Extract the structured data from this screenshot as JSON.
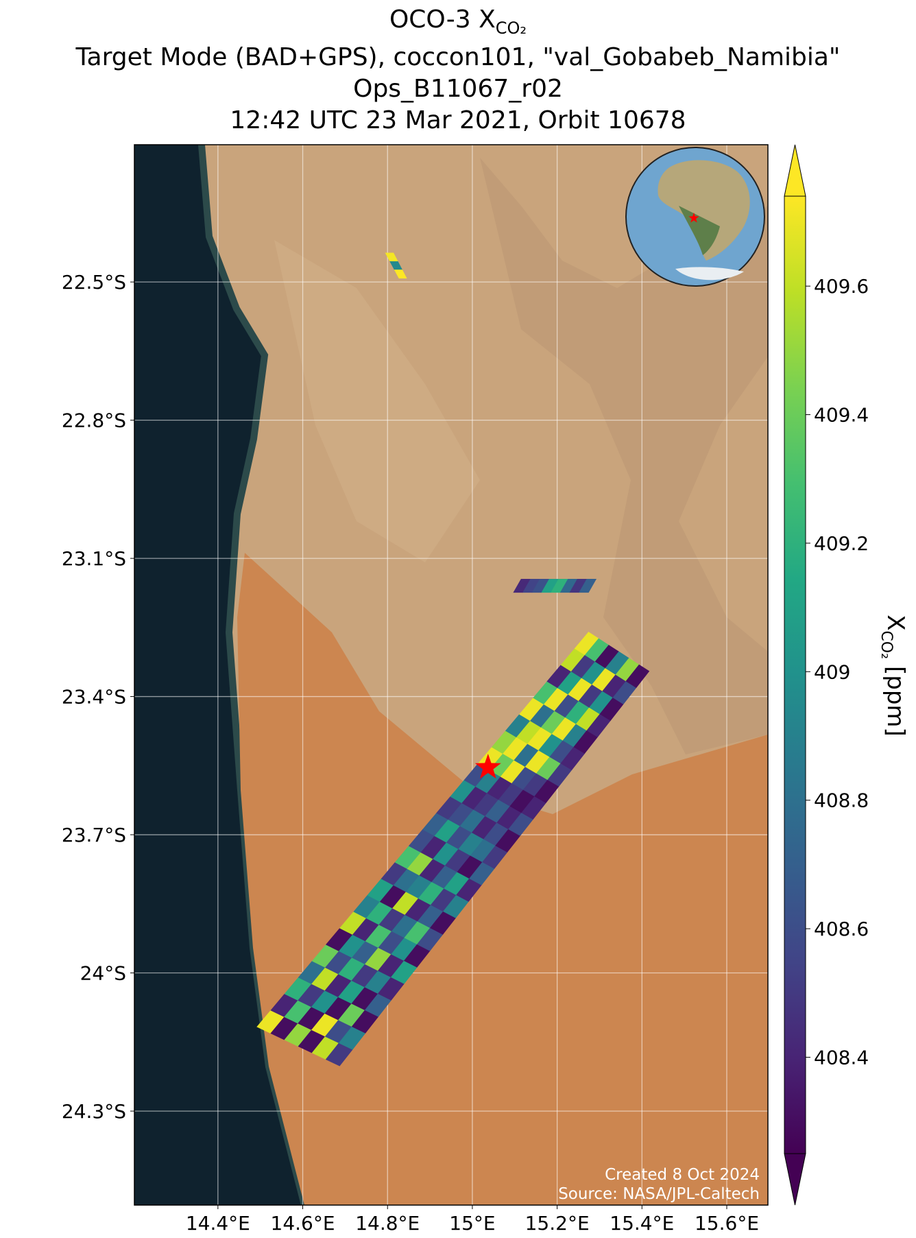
{
  "chart_data": {
    "type": "map",
    "title": {
      "main": "OCO-3 X",
      "subscript": "CO₂"
    },
    "subtitles": [
      "Target Mode (BAD+GPS), coccon101, \"val_Gobabeb_Namibia\"",
      "Ops_B11067_r02",
      "12:42 UTC 23 Mar 2021, Orbit 10678"
    ],
    "xlim": [
      14.203,
      15.697
    ],
    "ylim": [
      -24.504,
      -22.202
    ],
    "xticks": [
      {
        "value": 14.4,
        "label": "14.4°E"
      },
      {
        "value": 14.6,
        "label": "14.6°E"
      },
      {
        "value": 14.8,
        "label": "14.8°E"
      },
      {
        "value": 15.0,
        "label": "15°E"
      },
      {
        "value": 15.2,
        "label": "15.2°E"
      },
      {
        "value": 15.4,
        "label": "15.4°E"
      },
      {
        "value": 15.6,
        "label": "15.6°E"
      }
    ],
    "yticks": [
      {
        "value": -22.5,
        "label": "22.5°S"
      },
      {
        "value": -22.8,
        "label": "22.8°S"
      },
      {
        "value": -23.1,
        "label": "23.1°S"
      },
      {
        "value": -23.4,
        "label": "23.4°S"
      },
      {
        "value": -23.7,
        "label": "23.7°S"
      },
      {
        "value": -24.0,
        "label": "24°S"
      },
      {
        "value": -24.3,
        "label": "24.3°S"
      }
    ],
    "grid": true,
    "colormap": "viridis",
    "clim": [
      408.25,
      409.74
    ],
    "colorbar_ticks": [
      408.4,
      408.6,
      408.8,
      409.0,
      409.2,
      409.4,
      409.6
    ],
    "colorbar_label": {
      "main": "X",
      "subscript": "CO₂",
      "unit": "[ppm]"
    },
    "target": {
      "lon": 15.037,
      "lat": -23.554,
      "color": "#ff0000"
    },
    "swaths": [
      {
        "corners": [
          [
            14.795,
            -22.437
          ],
          [
            14.814,
            -22.437
          ],
          [
            14.827,
            -22.492
          ],
          [
            14.845,
            -22.492
          ]
        ],
        "values": [
          [
            409.72
          ],
          [
            408.95
          ],
          [
            409.74
          ]
        ]
      },
      {
        "corners": [
          [
            15.097,
            -23.174
          ],
          [
            15.274,
            -23.174
          ],
          [
            15.115,
            -23.145
          ],
          [
            15.292,
            -23.145
          ]
        ],
        "values": [
          [
            408.42,
            408.55,
            408.62,
            409.1,
            409.2,
            408.75,
            408.48,
            408.7
          ]
        ]
      },
      {
        "corners": [
          [
            14.492,
            -24.117
          ],
          [
            14.687,
            -24.202
          ],
          [
            15.274,
            -23.26
          ],
          [
            15.417,
            -23.345
          ]
        ],
        "values": [
          [
            409.7,
            408.3,
            409.5,
            408.3,
            409.6,
            408.5
          ],
          [
            408.4,
            409.3,
            408.3,
            409.7,
            408.6,
            408.9
          ],
          [
            409.2,
            408.5,
            409.0,
            408.3,
            409.4,
            408.3
          ],
          [
            408.8,
            409.6,
            408.4,
            409.1,
            408.3,
            408.7
          ],
          [
            409.4,
            408.6,
            409.2,
            408.5,
            408.9,
            408.4
          ],
          [
            408.3,
            409.0,
            408.7,
            409.5,
            408.4,
            409.1
          ],
          [
            409.6,
            408.4,
            409.3,
            408.6,
            409.0,
            408.3
          ],
          [
            408.9,
            409.2,
            408.5,
            408.8,
            409.3,
            408.6
          ],
          [
            409.1,
            408.3,
            409.6,
            408.4,
            408.7,
            408.3
          ],
          [
            408.5,
            408.8,
            408.9,
            409.2,
            408.5,
            408.9
          ],
          [
            409.3,
            409.5,
            408.4,
            408.7,
            409.1,
            408.4
          ],
          [
            408.6,
            408.4,
            409.0,
            408.5,
            408.3,
            408.7
          ],
          [
            408.7,
            409.1,
            408.6,
            408.9,
            408.8,
            408.5
          ],
          [
            408.5,
            408.6,
            408.8,
            408.4,
            408.6,
            408.3
          ],
          [
            409.0,
            408.4,
            408.5,
            408.7,
            408.4,
            408.6
          ],
          [
            408.6,
            408.9,
            408.4,
            408.5,
            408.3,
            408.4
          ],
          [
            409.7,
            409.4,
            409.7,
            408.6,
            408.5,
            408.3
          ],
          [
            409.5,
            409.7,
            408.8,
            409.7,
            409.4,
            408.5
          ],
          [
            408.9,
            409.6,
            409.7,
            409.0,
            408.6,
            408.4
          ],
          [
            409.7,
            408.8,
            409.4,
            409.7,
            408.9,
            408.3
          ],
          [
            409.3,
            409.7,
            408.6,
            409.2,
            409.6,
            408.4
          ],
          [
            408.4,
            409.1,
            409.7,
            408.5,
            409.0,
            408.3
          ],
          [
            409.6,
            408.5,
            409.0,
            409.7,
            408.4,
            408.6
          ],
          [
            409.7,
            409.3,
            408.3,
            408.9,
            409.5,
            408.3
          ]
        ]
      }
    ],
    "credits": [
      "Created 8 Oct 2024",
      "Source: NASA/JPL-Caltech"
    ]
  }
}
